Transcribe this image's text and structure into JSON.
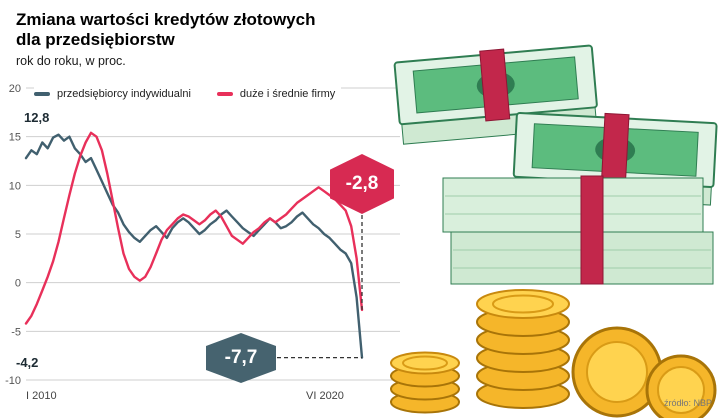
{
  "header": {
    "title_line1": "Zmiana wartości kredytów złotowych",
    "title_line2": "dla przedsiębiorstw",
    "subtitle": "rok do roku, w proc."
  },
  "legend": {
    "items": [
      {
        "label": "przedsiębiorcy indywidualni"
      },
      {
        "label": "duże i średnie firmy"
      }
    ]
  },
  "annotations": {
    "blue_start": "12,8",
    "red_start": "-4,2",
    "red_callout": "-2,8",
    "blue_callout": "-7,7",
    "red_callout_color": "#d72a52",
    "blue_callout_color": "#46636f"
  },
  "source": "źródło: NBP",
  "chart_data": {
    "type": "line",
    "title": "Zmiana wartości kredytów złotowych dla przedsiębiorstw",
    "subtitle": "rok do roku, w proc.",
    "ylim": [
      -10,
      20
    ],
    "y_ticks": [
      20,
      15,
      10,
      5,
      0,
      -5,
      -10
    ],
    "x_labels": [
      "I 2010",
      "VI 2020"
    ],
    "x_range_note": "styczeń 2010 – czerwiec 2020, próbkowanie co 2 miesiące",
    "grid": "horizontal",
    "legend_position": "top",
    "series": [
      {
        "name": "przedsiębiorcy indywidualni",
        "color": "#41606f",
        "end_value": -7.7,
        "values": [
          12.8,
          13.6,
          13.2,
          14.4,
          13.8,
          14.9,
          15.2,
          14.6,
          15.0,
          13.8,
          13.2,
          12.4,
          12.8,
          11.6,
          10.4,
          9.2,
          8.0,
          7.2,
          6.0,
          5.2,
          4.6,
          4.2,
          4.8,
          5.4,
          5.8,
          5.2,
          4.6,
          5.6,
          6.2,
          6.6,
          6.2,
          5.6,
          5.0,
          5.4,
          6.0,
          6.4,
          7.0,
          7.4,
          6.8,
          6.2,
          5.6,
          5.2,
          4.8,
          5.4,
          6.0,
          6.6,
          6.2,
          5.6,
          5.8,
          6.2,
          6.8,
          7.2,
          6.6,
          6.0,
          5.6,
          5.0,
          4.6,
          4.0,
          3.4,
          3.0,
          2.0,
          -1.5,
          -7.7
        ]
      },
      {
        "name": "duże i średnie firmy",
        "color": "#e8305a",
        "end_value": -2.8,
        "values": [
          -4.2,
          -3.4,
          -2.2,
          -0.8,
          0.6,
          2.2,
          4.2,
          6.6,
          9.0,
          11.2,
          13.0,
          14.4,
          15.4,
          15.0,
          13.6,
          11.2,
          8.4,
          5.6,
          3.0,
          1.4,
          0.6,
          0.2,
          0.6,
          1.6,
          3.0,
          4.4,
          5.4,
          6.0,
          6.6,
          7.0,
          6.8,
          6.4,
          6.0,
          6.4,
          7.0,
          7.4,
          6.8,
          5.8,
          4.8,
          4.4,
          4.0,
          4.6,
          5.2,
          5.6,
          6.2,
          6.6,
          6.2,
          6.6,
          7.0,
          7.6,
          8.2,
          8.6,
          9.0,
          9.4,
          9.8,
          9.4,
          9.0,
          8.6,
          8.0,
          7.4,
          5.8,
          2.5,
          -2.8
        ]
      }
    ]
  }
}
